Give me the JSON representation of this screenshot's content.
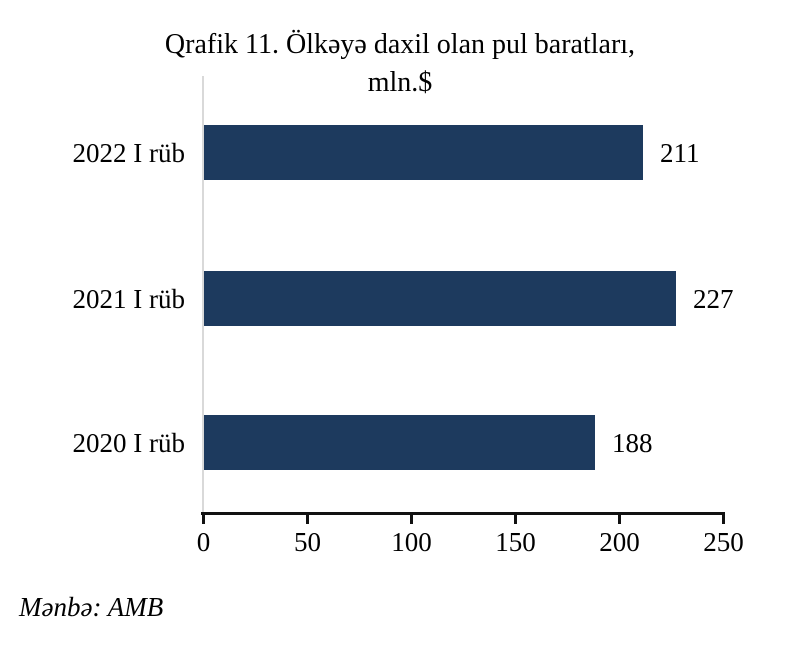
{
  "chart_data": {
    "type": "bar",
    "orientation": "horizontal",
    "title": "Qrafik 11. Ölkəyə daxil olan pul baratları, mln.$",
    "title_lines": [
      "Qrafik 11. Ölkəyə daxil olan pul baratları,",
      "mln.$"
    ],
    "categories": [
      "2022 I rüb",
      "2021 I rüb",
      "2020 I rüb"
    ],
    "values": [
      211,
      227,
      188
    ],
    "x_ticks": [
      0,
      50,
      100,
      150,
      200,
      250
    ],
    "xlim": [
      0,
      250
    ],
    "xlabel": "",
    "ylabel": "",
    "bar_color": "#1d3a5e",
    "gridline_color": "#d9d9d9",
    "axis_color": "#111111",
    "grid": "zero-line-only",
    "legend": "none",
    "value_labels_position": "right-of-bar"
  },
  "source": {
    "text": "Mənbə: AMB"
  }
}
